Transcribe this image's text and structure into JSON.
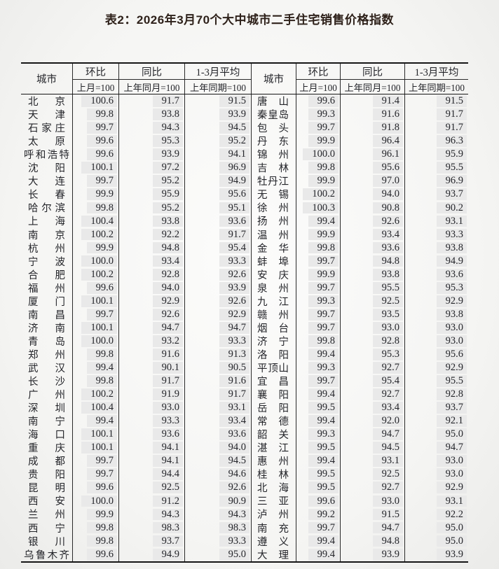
{
  "title": "表2：2026年3月70个大中城市二手住宅销售价格指数",
  "table": {
    "city_header": "城市",
    "col_groups": [
      {
        "label": "环比",
        "sub": "上月=100"
      },
      {
        "label": "同比",
        "sub": "上年同月=100"
      },
      {
        "label": "1-3月平均",
        "sub": "上年同期=100"
      }
    ],
    "left_rows": [
      {
        "city": "北京",
        "mom": "100.6",
        "yoy": "91.7",
        "avg": "91.5"
      },
      {
        "city": "天津",
        "mom": "99.8",
        "yoy": "93.8",
        "avg": "93.9"
      },
      {
        "city": "石家庄",
        "mom": "99.7",
        "yoy": "94.3",
        "avg": "94.5"
      },
      {
        "city": "太原",
        "mom": "99.6",
        "yoy": "95.3",
        "avg": "95.2"
      },
      {
        "city": "呼和浩特",
        "mom": "99.6",
        "yoy": "93.9",
        "avg": "94.1"
      },
      {
        "city": "沈阳",
        "mom": "100.1",
        "yoy": "97.2",
        "avg": "96.9"
      },
      {
        "city": "大连",
        "mom": "99.7",
        "yoy": "95.2",
        "avg": "94.9"
      },
      {
        "city": "长春",
        "mom": "99.9",
        "yoy": "95.9",
        "avg": "95.6"
      },
      {
        "city": "哈尔滨",
        "mom": "99.8",
        "yoy": "95.2",
        "avg": "95.1"
      },
      {
        "city": "上海",
        "mom": "100.4",
        "yoy": "93.8",
        "avg": "93.6"
      },
      {
        "city": "南京",
        "mom": "100.2",
        "yoy": "92.2",
        "avg": "91.7"
      },
      {
        "city": "杭州",
        "mom": "99.9",
        "yoy": "94.8",
        "avg": "95.4"
      },
      {
        "city": "宁波",
        "mom": "100.0",
        "yoy": "93.4",
        "avg": "93.3"
      },
      {
        "city": "合肥",
        "mom": "100.2",
        "yoy": "92.8",
        "avg": "92.6"
      },
      {
        "city": "福州",
        "mom": "99.6",
        "yoy": "94.0",
        "avg": "93.9"
      },
      {
        "city": "厦门",
        "mom": "100.1",
        "yoy": "92.9",
        "avg": "92.6"
      },
      {
        "city": "南昌",
        "mom": "99.7",
        "yoy": "92.6",
        "avg": "92.9"
      },
      {
        "city": "济南",
        "mom": "100.1",
        "yoy": "94.7",
        "avg": "94.7"
      },
      {
        "city": "青岛",
        "mom": "100.0",
        "yoy": "93.2",
        "avg": "93.3"
      },
      {
        "city": "郑州",
        "mom": "99.8",
        "yoy": "91.6",
        "avg": "91.3"
      },
      {
        "city": "武汉",
        "mom": "99.4",
        "yoy": "90.1",
        "avg": "90.5"
      },
      {
        "city": "长沙",
        "mom": "99.8",
        "yoy": "91.7",
        "avg": "91.6"
      },
      {
        "city": "广州",
        "mom": "100.2",
        "yoy": "91.9",
        "avg": "91.7"
      },
      {
        "city": "深圳",
        "mom": "100.4",
        "yoy": "93.0",
        "avg": "93.1"
      },
      {
        "city": "南宁",
        "mom": "99.4",
        "yoy": "93.3",
        "avg": "93.4"
      },
      {
        "city": "海口",
        "mom": "100.1",
        "yoy": "93.6",
        "avg": "93.6"
      },
      {
        "city": "重庆",
        "mom": "100.1",
        "yoy": "94.1",
        "avg": "94.0"
      },
      {
        "city": "成都",
        "mom": "99.7",
        "yoy": "94.1",
        "avg": "94.5"
      },
      {
        "city": "贵阳",
        "mom": "99.7",
        "yoy": "94.4",
        "avg": "94.6"
      },
      {
        "city": "昆明",
        "mom": "99.6",
        "yoy": "92.5",
        "avg": "92.6"
      },
      {
        "city": "西安",
        "mom": "100.0",
        "yoy": "91.2",
        "avg": "90.9"
      },
      {
        "city": "兰州",
        "mom": "99.9",
        "yoy": "94.3",
        "avg": "94.3"
      },
      {
        "city": "西宁",
        "mom": "99.8",
        "yoy": "98.3",
        "avg": "98.3"
      },
      {
        "city": "银川",
        "mom": "99.8",
        "yoy": "93.7",
        "avg": "93.3"
      },
      {
        "city": "乌鲁木齐",
        "mom": "99.6",
        "yoy": "94.9",
        "avg": "95.0"
      }
    ],
    "right_rows": [
      {
        "city": "唐山",
        "mom": "99.6",
        "yoy": "91.4",
        "avg": "91.5"
      },
      {
        "city": "秦皇岛",
        "mom": "99.3",
        "yoy": "91.6",
        "avg": "91.7"
      },
      {
        "city": "包头",
        "mom": "99.7",
        "yoy": "91.8",
        "avg": "91.7"
      },
      {
        "city": "丹东",
        "mom": "99.9",
        "yoy": "96.4",
        "avg": "96.3"
      },
      {
        "city": "锦州",
        "mom": "100.0",
        "yoy": "96.1",
        "avg": "95.9"
      },
      {
        "city": "吉林",
        "mom": "99.8",
        "yoy": "95.6",
        "avg": "95.5"
      },
      {
        "city": "牡丹江",
        "mom": "99.9",
        "yoy": "97.0",
        "avg": "96.9"
      },
      {
        "city": "无锡",
        "mom": "100.2",
        "yoy": "94.0",
        "avg": "93.7"
      },
      {
        "city": "徐州",
        "mom": "100.3",
        "yoy": "90.8",
        "avg": "90.2"
      },
      {
        "city": "扬州",
        "mom": "99.4",
        "yoy": "92.6",
        "avg": "93.1"
      },
      {
        "city": "温州",
        "mom": "99.9",
        "yoy": "93.4",
        "avg": "93.3"
      },
      {
        "city": "金华",
        "mom": "99.8",
        "yoy": "93.6",
        "avg": "93.8"
      },
      {
        "city": "蚌埠",
        "mom": "99.7",
        "yoy": "94.8",
        "avg": "94.9"
      },
      {
        "city": "安庆",
        "mom": "99.9",
        "yoy": "93.8",
        "avg": "93.6"
      },
      {
        "city": "泉州",
        "mom": "99.7",
        "yoy": "95.5",
        "avg": "95.3"
      },
      {
        "city": "九江",
        "mom": "99.3",
        "yoy": "92.5",
        "avg": "92.9"
      },
      {
        "city": "赣州",
        "mom": "99.7",
        "yoy": "93.5",
        "avg": "93.8"
      },
      {
        "city": "烟台",
        "mom": "99.7",
        "yoy": "93.0",
        "avg": "93.0"
      },
      {
        "city": "济宁",
        "mom": "99.8",
        "yoy": "92.8",
        "avg": "93.0"
      },
      {
        "city": "洛阳",
        "mom": "99.4",
        "yoy": "95.3",
        "avg": "95.6"
      },
      {
        "city": "平顶山",
        "mom": "99.3",
        "yoy": "92.7",
        "avg": "92.9"
      },
      {
        "city": "宜昌",
        "mom": "99.7",
        "yoy": "95.4",
        "avg": "95.5"
      },
      {
        "city": "襄阳",
        "mom": "99.4",
        "yoy": "92.7",
        "avg": "92.8"
      },
      {
        "city": "岳阳",
        "mom": "99.5",
        "yoy": "93.4",
        "avg": "93.7"
      },
      {
        "city": "常德",
        "mom": "99.4",
        "yoy": "92.0",
        "avg": "92.1"
      },
      {
        "city": "韶关",
        "mom": "99.3",
        "yoy": "94.7",
        "avg": "95.0"
      },
      {
        "city": "湛江",
        "mom": "99.5",
        "yoy": "94.5",
        "avg": "94.7"
      },
      {
        "city": "惠州",
        "mom": "99.4",
        "yoy": "93.1",
        "avg": "93.0"
      },
      {
        "city": "桂林",
        "mom": "99.5",
        "yoy": "92.5",
        "avg": "93.0"
      },
      {
        "city": "北海",
        "mom": "99.5",
        "yoy": "92.7",
        "avg": "92.9"
      },
      {
        "city": "三亚",
        "mom": "99.6",
        "yoy": "93.0",
        "avg": "93.1"
      },
      {
        "city": "泸州",
        "mom": "99.2",
        "yoy": "91.5",
        "avg": "92.2"
      },
      {
        "city": "南充",
        "mom": "99.7",
        "yoy": "94.7",
        "avg": "95.0"
      },
      {
        "city": "遵义",
        "mom": "99.4",
        "yoy": "94.8",
        "avg": "95.0"
      },
      {
        "city": "大理",
        "mom": "99.4",
        "yoy": "93.9",
        "avg": "93.9"
      }
    ]
  },
  "colors": {
    "title_text": "#2e211a",
    "body_text": "#24252a",
    "rule_heavy": "#161616",
    "rule_light": "#2a2a2a",
    "number_band": "#e9e9e9",
    "page_background": "#f5f5f3"
  }
}
